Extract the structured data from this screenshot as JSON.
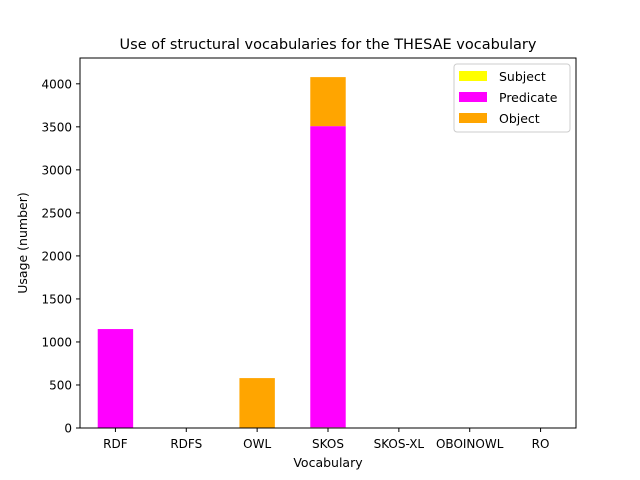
{
  "chart_data": {
    "type": "bar",
    "stacked": true,
    "title": "Use of structural vocabularies for the THESAE vocabulary",
    "xlabel": "Vocabulary",
    "ylabel": "Usage (number)",
    "categories": [
      "RDF",
      "RDFS",
      "OWL",
      "SKOS",
      "SKOS-XL",
      "OBOINOWL",
      "RO"
    ],
    "series": [
      {
        "name": "Subject",
        "color": "#ffff00",
        "values": [
          0,
          0,
          0,
          8,
          0,
          0,
          0
        ]
      },
      {
        "name": "Predicate",
        "color": "#ff00ff",
        "values": [
          1150,
          0,
          0,
          3500,
          0,
          0,
          0
        ]
      },
      {
        "name": "Object",
        "color": "#ffa500",
        "values": [
          0,
          0,
          580,
          570,
          0,
          0,
          0
        ]
      }
    ],
    "ylim": [
      0,
      4300
    ],
    "yticks": [
      0,
      500,
      1000,
      1500,
      2000,
      2500,
      3000,
      3500,
      4000
    ],
    "grid": false,
    "legend_position": "top-right"
  }
}
